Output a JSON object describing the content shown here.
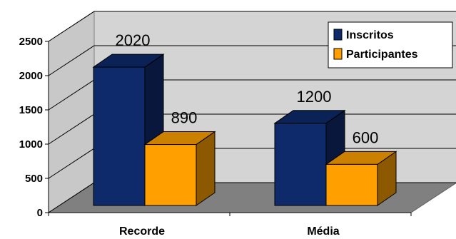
{
  "chart_data": {
    "type": "bar",
    "categories": [
      "Recorde",
      "Média"
    ],
    "series": [
      {
        "name": "Inscritos",
        "values": [
          2020,
          1200
        ],
        "color": "#0E2A6B"
      },
      {
        "name": "Participantes",
        "values": [
          890,
          600
        ],
        "color": "#FFA000"
      }
    ],
    "ylim": [
      0,
      2500
    ],
    "yticks": [
      "0",
      "500",
      "1000",
      "1500",
      "2000",
      "2500"
    ],
    "grid": true,
    "three_d": true,
    "legend_position": "top-right",
    "background_color": "#D4D4D4",
    "floor_color": "#808080"
  }
}
